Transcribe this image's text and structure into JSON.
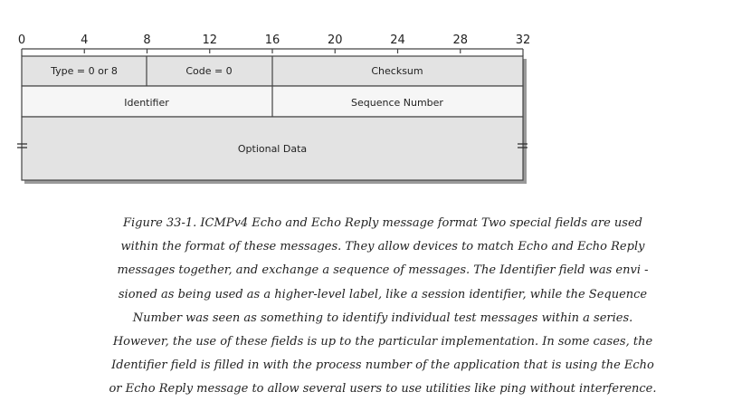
{
  "ruler": {
    "ticks": [
      "0",
      "4",
      "8",
      "12",
      "16",
      "20",
      "24",
      "28",
      "32"
    ]
  },
  "fields": {
    "type": "Type = 0 or 8",
    "code": "Code = 0",
    "checksum": "Checksum",
    "identifier": "Identifier",
    "sequence_number": "Sequence Number",
    "optional_data": "Optional Data"
  },
  "colors": {
    "row_dark": "#e3e3e3",
    "row_light": "#f6f6f6",
    "line": "#444444"
  },
  "caption": {
    "lines": [
      "Figure 33-1. ICMPv4 Echo and Echo Reply message format Two special fields are used",
      "within the format of these messages. They allow devices to match Echo and Echo Reply",
      "messages together, and exchange a sequence of messages. The Identifier field was envi -",
      "sioned as being used as a higher-level label, like a session identifier, while the Sequence",
      "Number was seen as something to identify individual test messages within a series.",
      "However, the use of these fields is up to the particular implementation. In some cases, the",
      "Identifier field is filled in with the process number of the application that is using the Echo",
      "or Echo Reply message to allow several users to use utilities like ping without interference."
    ]
  }
}
